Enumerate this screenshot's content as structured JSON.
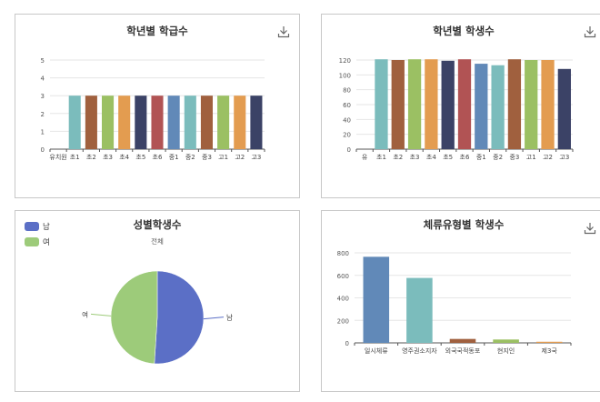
{
  "palette": [
    "#7bbcbc",
    "#a0603e",
    "#9bc063",
    "#e39c50",
    "#3b4266",
    "#b15354",
    "#6189b8"
  ],
  "chart_data": [
    {
      "type": "bar",
      "title": "학년별 학급수",
      "categories": [
        "유치원",
        "초1",
        "초2",
        "초3",
        "초4",
        "초5",
        "초6",
        "중1",
        "중2",
        "중3",
        "고1",
        "고2",
        "고3"
      ],
      "values": [
        0,
        3,
        3,
        3,
        3,
        3,
        3,
        3,
        3,
        3,
        3,
        3,
        3
      ],
      "ylim": [
        0,
        5
      ],
      "yticks": [
        "0",
        "1",
        "2",
        "3",
        "4",
        "5"
      ],
      "grid": true
    },
    {
      "type": "bar",
      "title": "학년별 학생수",
      "categories": [
        "유",
        "초1",
        "초2",
        "초3",
        "초4",
        "초5",
        "초6",
        "중1",
        "중2",
        "중3",
        "고1",
        "고2",
        "고3"
      ],
      "values": [
        0,
        121,
        120,
        121,
        121,
        119,
        121,
        115,
        113,
        121,
        120,
        120,
        108
      ],
      "ylim": [
        0,
        120
      ],
      "yticks": [
        "0",
        "20",
        "40",
        "60",
        "80",
        "100",
        "120"
      ],
      "grid": true
    },
    {
      "type": "pie",
      "title": "성별학생수",
      "subtitle": "전체",
      "labels": [
        "남",
        "여"
      ],
      "values": [
        51,
        49
      ],
      "colors": [
        "#5b6fc6",
        "#9dcb7a"
      ],
      "legend": "top-left"
    },
    {
      "type": "bar",
      "title": "체류유형별 학생수",
      "categories": [
        "일시체류",
        "영주권소지자",
        "외국국적동포",
        "현지인",
        "제3국"
      ],
      "values": [
        765,
        577,
        35,
        30,
        10
      ],
      "colors": [
        "#6189b8",
        "#7bbcbc",
        "#a0603e",
        "#9bc063",
        "#e39c50"
      ],
      "ylim": [
        0,
        800
      ],
      "yticks": [
        "0",
        "200",
        "400",
        "600",
        "800"
      ],
      "grid": true
    }
  ],
  "icons": {
    "download": "download-icon"
  }
}
